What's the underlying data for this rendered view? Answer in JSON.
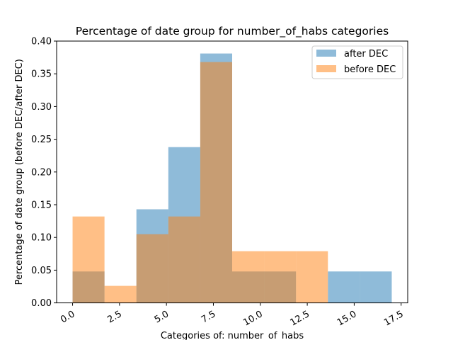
{
  "chart_data": {
    "type": "bar",
    "title": "Percentage of date group for number_of_habs categories",
    "xlabel": "Categories of: number_of_habs",
    "ylabel": "Percentage of date group (before DEC/after DEC)",
    "xlim": [
      -0.85,
      17.85
    ],
    "ylim": [
      0,
      0.4
    ],
    "xticks": [
      "0.0",
      "2.5",
      "5.0",
      "7.5",
      "10.0",
      "12.5",
      "15.0",
      "17.5"
    ],
    "yticks": [
      "0.00",
      "0.05",
      "0.10",
      "0.15",
      "0.20",
      "0.25",
      "0.30",
      "0.35",
      "0.40"
    ],
    "grid": false,
    "legend_position": "top-right",
    "bin_edges": [
      0,
      1.7,
      3.4,
      5.1,
      6.8,
      8.5,
      10.2,
      11.9,
      13.6,
      15.3,
      17.0
    ],
    "series": [
      {
        "name": "after DEC",
        "color": "#1f77b4",
        "values": [
          0.048,
          0.0,
          0.143,
          0.238,
          0.381,
          0.048,
          0.048,
          0.0,
          0.048,
          0.048
        ]
      },
      {
        "name": "before DEC",
        "color": "#ff7f0e",
        "values": [
          0.132,
          0.026,
          0.105,
          0.132,
          0.368,
          0.079,
          0.079,
          0.079,
          0.0,
          0.0
        ]
      }
    ]
  }
}
